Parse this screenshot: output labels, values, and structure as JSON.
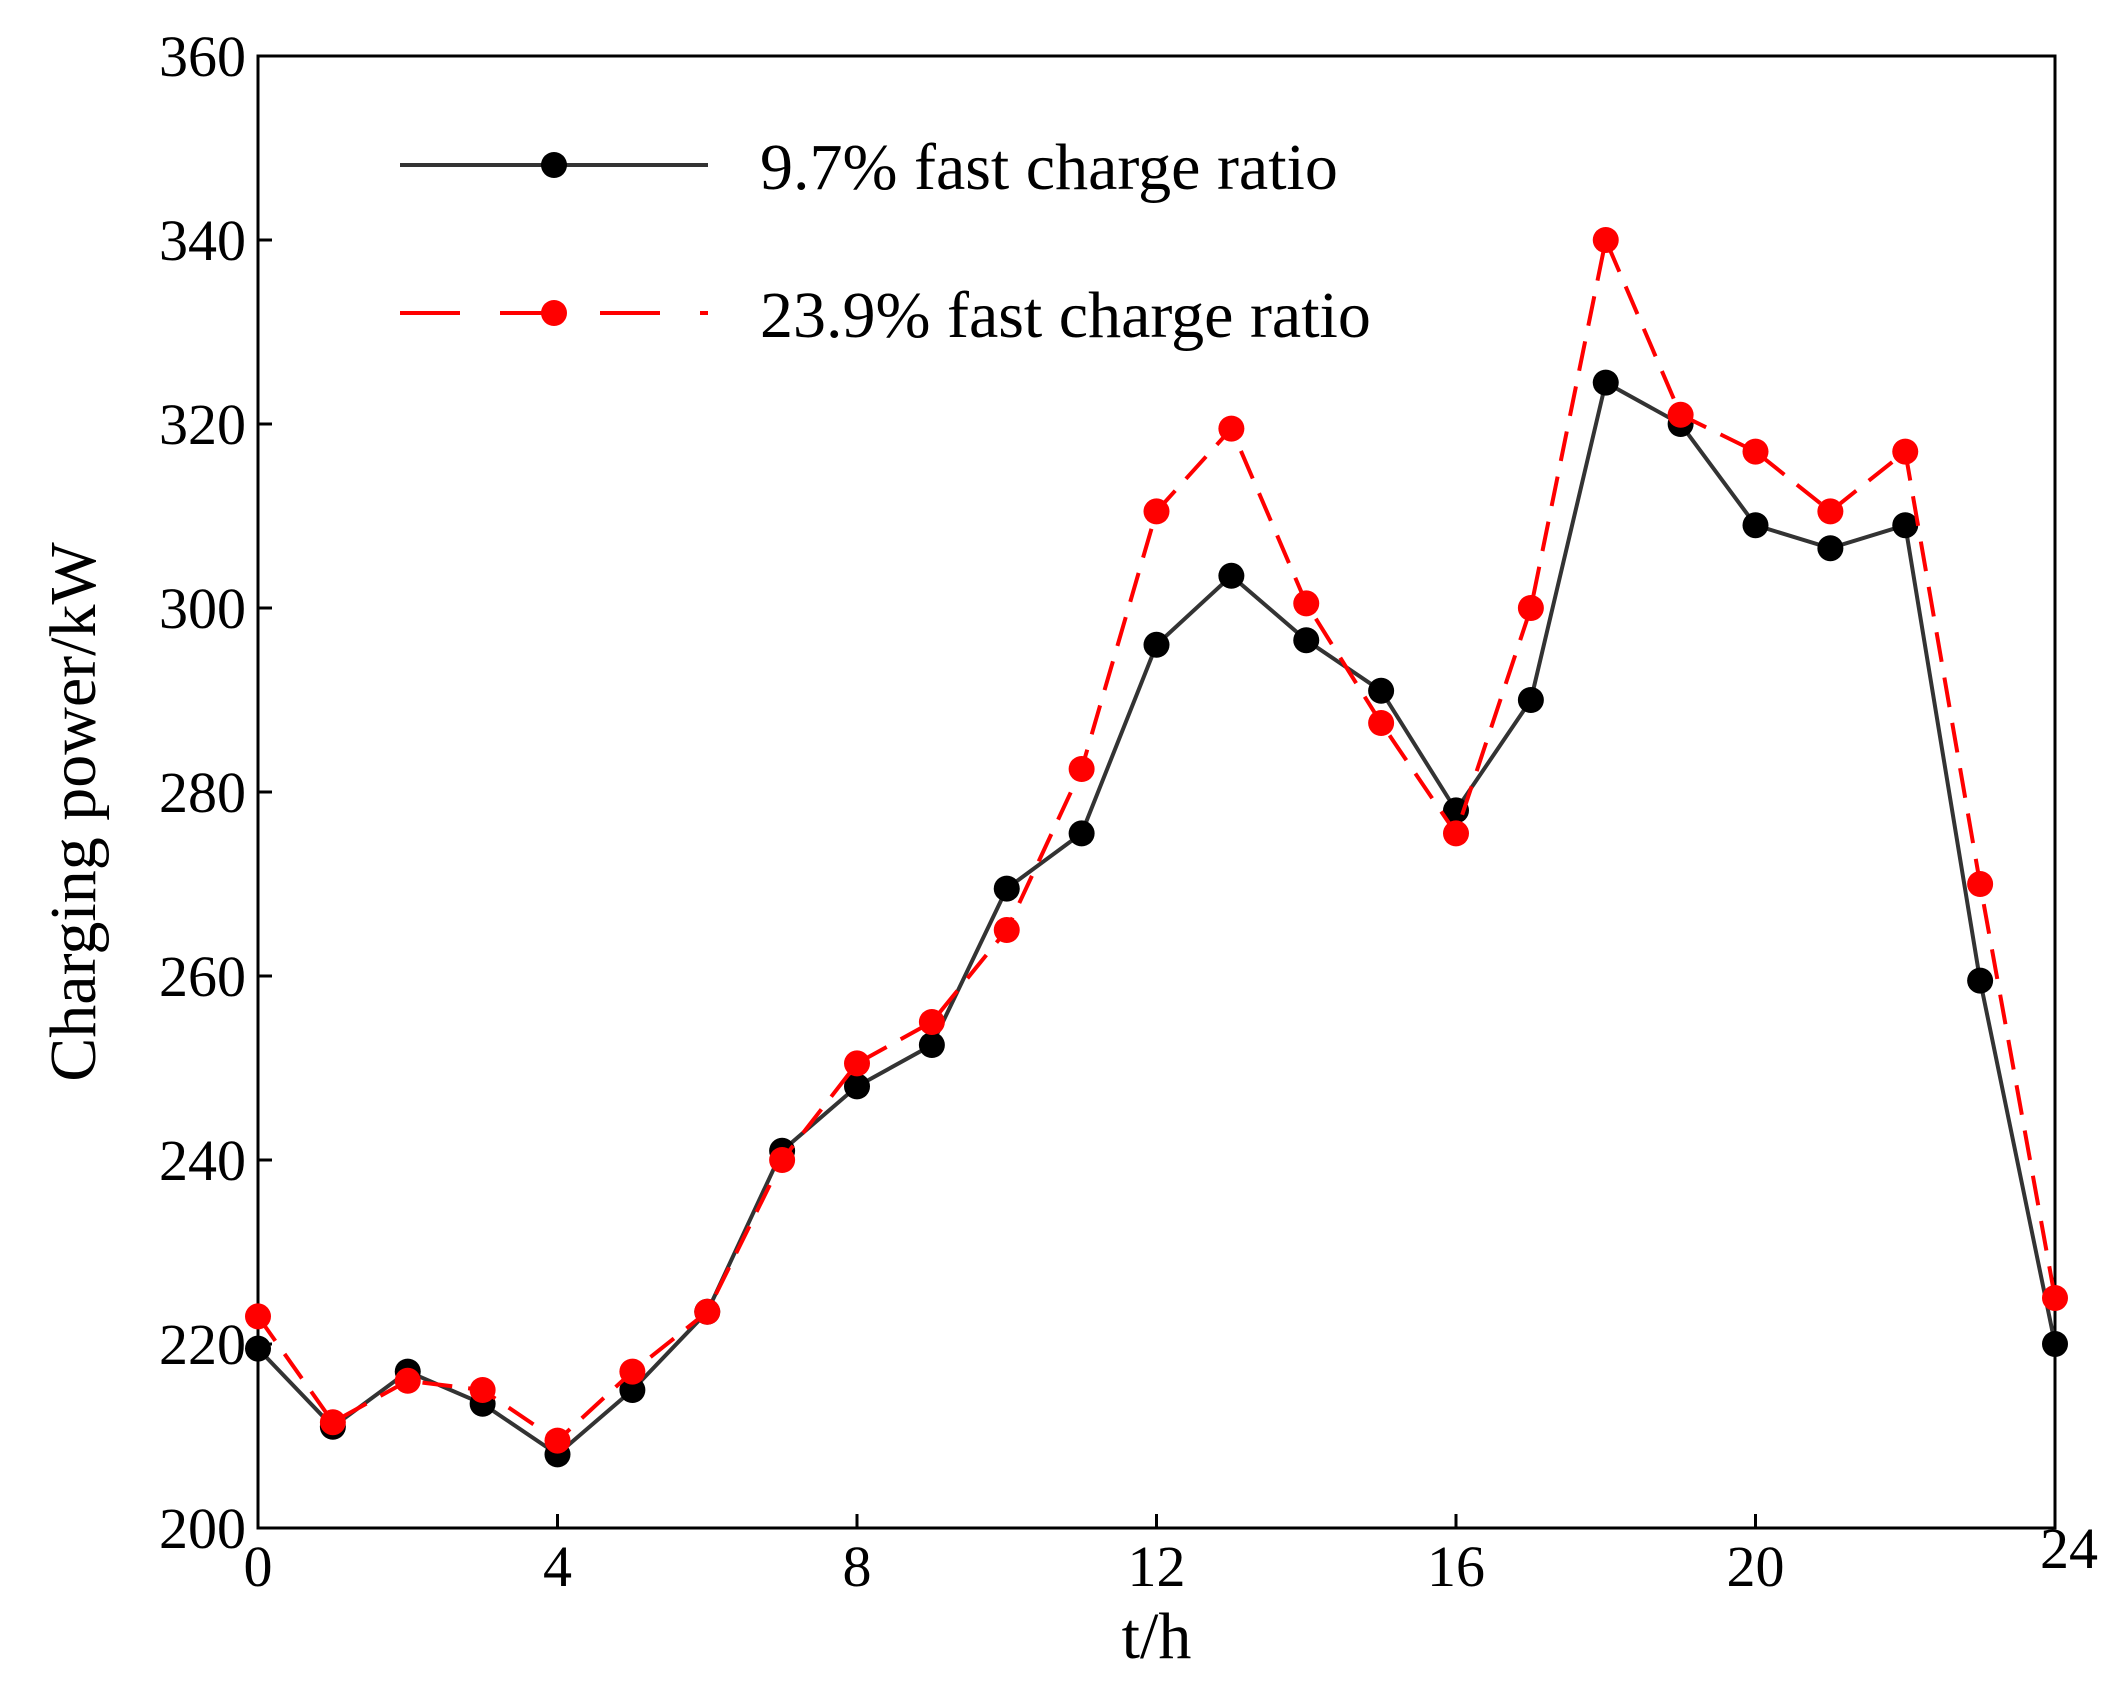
{
  "chart_data": {
    "type": "line",
    "title": "",
    "xlabel": "t/h",
    "ylabel": "Charging power/kW",
    "xlim": [
      0,
      24
    ],
    "ylim": [
      200,
      360
    ],
    "xticks": [
      0,
      4,
      8,
      12,
      16,
      20,
      24
    ],
    "yticks": [
      200,
      220,
      240,
      260,
      280,
      300,
      320,
      340,
      360
    ],
    "x": [
      0,
      1,
      2,
      3,
      4,
      5,
      6,
      7,
      8,
      9,
      10,
      11,
      12,
      13,
      14,
      15,
      16,
      17,
      18,
      19,
      20,
      21,
      22,
      23,
      24
    ],
    "legend_position": "top-left",
    "grid": false,
    "series": [
      {
        "name": "9.7% fast charge ratio",
        "color": "#333333",
        "marker_color": "#000000",
        "line_style": "solid",
        "values": [
          219.5,
          211,
          217,
          213.5,
          208,
          215,
          223.5,
          241,
          248,
          252.5,
          269.5,
          275.5,
          296,
          303.5,
          296.5,
          291,
          278,
          290,
          324.5,
          320,
          309,
          306.5,
          309,
          259.5,
          220
        ]
      },
      {
        "name": "23.9% fast charge ratio",
        "color": "#ff0000",
        "marker_color": "#ff0000",
        "line_style": "dashed",
        "values": [
          223,
          211.5,
          216,
          215,
          209.5,
          217,
          223.5,
          240,
          250.5,
          255,
          265,
          282.5,
          310.5,
          319.5,
          300.5,
          287.5,
          275.5,
          300,
          340,
          321,
          317,
          310.5,
          317,
          270,
          225
        ]
      }
    ]
  }
}
